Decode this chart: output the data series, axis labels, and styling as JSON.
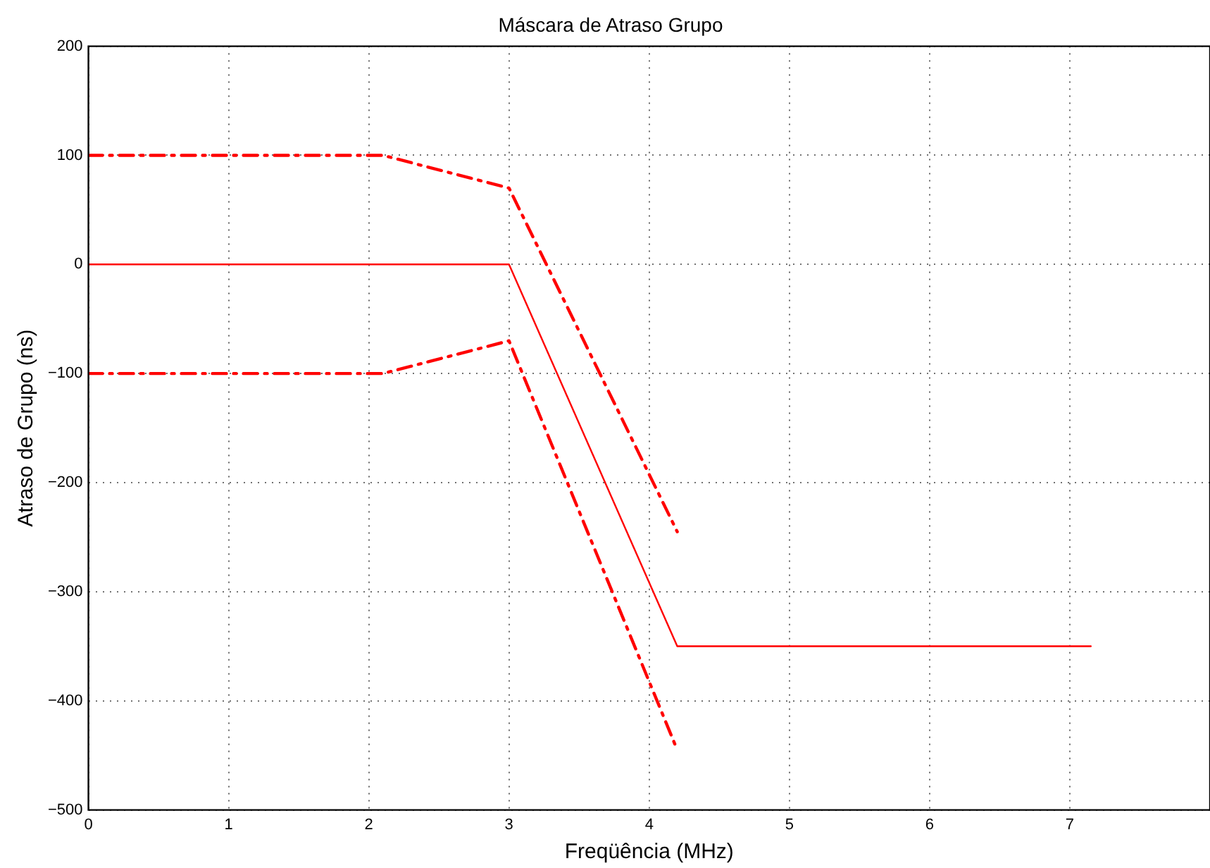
{
  "chart_data": {
    "type": "line",
    "title": "Máscara de Atraso Grupo",
    "xlabel": "Freqüência (MHz)",
    "ylabel": "Atraso de Grupo (ns)",
    "series": [
      {
        "color": "#ff0000",
        "x": [
          0,
          3,
          4.2,
          7.15
        ],
        "values": [
          0,
          0,
          -350,
          -350
        ],
        "line_style": "solid"
      },
      {
        "color": "#ff0000",
        "x": [
          0,
          2.1,
          3,
          4.2
        ],
        "values": [
          100,
          100,
          70,
          -245
        ],
        "line_style": "dashed"
      },
      {
        "color": "#ff0000",
        "x": [
          0,
          2.1,
          3,
          4.2
        ],
        "values": [
          -100,
          -100,
          -70,
          -445
        ],
        "line_style": "dashed"
      }
    ],
    "xlim": [
      0,
      8
    ],
    "xticks": [
      0,
      1,
      2,
      3,
      4,
      5,
      6,
      7
    ],
    "ylim": [
      -500,
      200
    ],
    "yticks": [
      -500,
      -400,
      -300,
      -200,
      -100,
      0,
      100,
      200
    ],
    "grid": true,
    "legend": false,
    "marker": "none"
  }
}
